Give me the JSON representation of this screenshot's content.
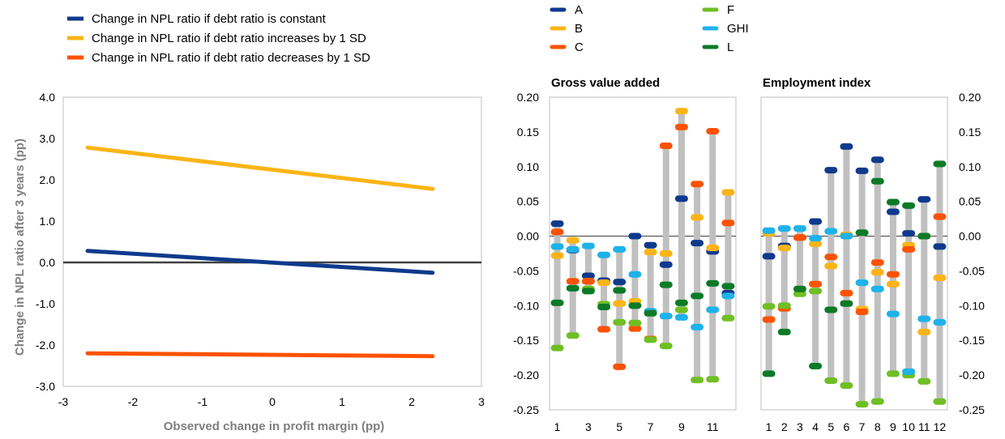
{
  "chart_data": [
    {
      "type": "line",
      "xlabel": "Observed change in profit margin (pp)",
      "ylabel": "Change in NPL ratio after 3 years (pp)",
      "xlim": [
        -3,
        3
      ],
      "ylim": [
        -3,
        4
      ],
      "xticks": [
        "-3",
        "-2",
        "-1",
        "0",
        "1",
        "2",
        "3"
      ],
      "yticks": [
        "4.0",
        "3.0",
        "2.0",
        "1.0",
        "0.0",
        "-1.0",
        "-2.0",
        "-3.0"
      ],
      "grid": false,
      "legend_position": "top-left",
      "series": [
        {
          "name": "Change in NPL ratio if debt ratio is constant",
          "color": "#0f3a8c",
          "x": [
            -2.65,
            2.3
          ],
          "y": [
            0.28,
            -0.25
          ]
        },
        {
          "name": "Change in NPL ratio if debt ratio increases by 1 SD",
          "color": "#fbb416",
          "x": [
            -2.65,
            2.3
          ],
          "y": [
            2.78,
            1.78
          ]
        },
        {
          "name": "Change in NPL ratio if debt ratio  decreases by 1 SD",
          "color": "#fd5200",
          "x": [
            -2.65,
            2.3
          ],
          "y": [
            -2.2,
            -2.27
          ]
        }
      ]
    },
    {
      "type": "scatter",
      "title": "Gross value added",
      "categories": [
        "1",
        "2",
        "3",
        "4",
        "5",
        "6",
        "7",
        "8",
        "9",
        "10",
        "11",
        "12"
      ],
      "xtick_labels": [
        "1",
        "",
        "3",
        "",
        "5",
        "",
        "7",
        "",
        "9",
        "",
        "11",
        ""
      ],
      "yticks": [
        "0.20",
        "0.15",
        "0.10",
        "0.05",
        "0.00",
        "-0.05",
        "-0.10",
        "-0.15",
        "-0.20",
        "-0.25"
      ],
      "ylim": [
        -0.25,
        0.2
      ],
      "series": [
        {
          "name": "A",
          "color": "#0f3a8c",
          "values": [
            0.018,
            -0.02,
            -0.057,
            -0.064,
            -0.066,
            0.0,
            -0.013,
            -0.041,
            0.054,
            -0.01,
            -0.022,
            -0.082
          ]
        },
        {
          "name": "B",
          "color": "#fbb416",
          "values": [
            -0.028,
            -0.006,
            -0.065,
            -0.067,
            -0.097,
            -0.094,
            -0.023,
            -0.025,
            0.18,
            0.027,
            -0.017,
            0.063
          ]
        },
        {
          "name": "C",
          "color": "#fd5200",
          "values": [
            0.006,
            -0.065,
            -0.065,
            -0.134,
            -0.188,
            -0.133,
            -0.148,
            0.13,
            0.157,
            0.075,
            0.151,
            0.019
          ]
        },
        {
          "name": "F",
          "color": "#6fbf24",
          "values": [
            -0.161,
            -0.143,
            -0.076,
            -0.098,
            -0.124,
            -0.125,
            -0.149,
            -0.158,
            -0.106,
            -0.207,
            -0.206,
            -0.118
          ]
        },
        {
          "name": "GHI",
          "color": "#1eb2ea",
          "values": [
            -0.015,
            -0.019,
            -0.014,
            -0.027,
            -0.019,
            -0.055,
            -0.108,
            -0.115,
            -0.117,
            -0.131,
            -0.106,
            -0.086
          ]
        },
        {
          "name": "L",
          "color": "#0c7a27",
          "values": [
            -0.096,
            -0.075,
            -0.079,
            -0.102,
            -0.078,
            -0.1,
            -0.111,
            -0.07,
            -0.096,
            -0.086,
            -0.068,
            -0.072
          ]
        }
      ]
    },
    {
      "type": "scatter",
      "title": "Employment index",
      "categories": [
        "1",
        "2",
        "3",
        "4",
        "5",
        "6",
        "7",
        "8",
        "9",
        "10",
        "11",
        "12"
      ],
      "xtick_labels": [
        "1",
        "2",
        "3",
        "4",
        "5",
        "6",
        "7",
        "8",
        "9",
        "10",
        "11",
        "12"
      ],
      "yticks": [
        "0.20",
        "0.15",
        "0.10",
        "0.05",
        "0.00",
        "-0.05",
        "-0.10",
        "-0.15",
        "-0.20",
        "-0.25"
      ],
      "ylim": [
        -0.25,
        0.2
      ],
      "series": [
        {
          "name": "A",
          "color": "#0f3a8c",
          "values": [
            -0.029,
            -0.014,
            -0.002,
            0.021,
            0.095,
            0.129,
            0.094,
            0.11,
            0.035,
            0.004,
            0.053,
            -0.015
          ]
        },
        {
          "name": "B",
          "color": "#fbb416",
          "values": [
            0.004,
            -0.017,
            -0.002,
            -0.011,
            -0.043,
            0.002,
            -0.105,
            -0.052,
            -0.069,
            -0.013,
            -0.138,
            -0.06
          ]
        },
        {
          "name": "C",
          "color": "#fd5200",
          "values": [
            -0.12,
            -0.104,
            -0.002,
            -0.069,
            -0.03,
            -0.082,
            -0.109,
            -0.038,
            -0.055,
            -0.019,
            0.0,
            0.028
          ]
        },
        {
          "name": "F",
          "color": "#6fbf24",
          "values": [
            -0.101,
            -0.1,
            -0.083,
            -0.079,
            -0.208,
            -0.215,
            -0.242,
            -0.238,
            -0.198,
            -0.2,
            -0.209,
            -0.238
          ]
        },
        {
          "name": "GHI",
          "color": "#1eb2ea",
          "values": [
            0.008,
            0.011,
            0.011,
            -0.003,
            0.007,
            0.0,
            -0.067,
            -0.076,
            -0.112,
            -0.195,
            -0.119,
            -0.124
          ]
        },
        {
          "name": "L",
          "color": "#0c7a27",
          "values": [
            -0.198,
            -0.138,
            -0.076,
            -0.187,
            -0.106,
            -0.097,
            0.005,
            0.079,
            0.049,
            0.044,
            0.0,
            0.104
          ]
        }
      ]
    }
  ],
  "legend_right": [
    {
      "name": "A",
      "color": "#0f3a8c"
    },
    {
      "name": "B",
      "color": "#fbb416"
    },
    {
      "name": "C",
      "color": "#fd5200"
    },
    {
      "name": "F",
      "color": "#6fbf24"
    },
    {
      "name": "GHI",
      "color": "#1eb2ea"
    },
    {
      "name": "L",
      "color": "#0c7a27"
    }
  ],
  "range_bar_color": "#c0c0c0"
}
